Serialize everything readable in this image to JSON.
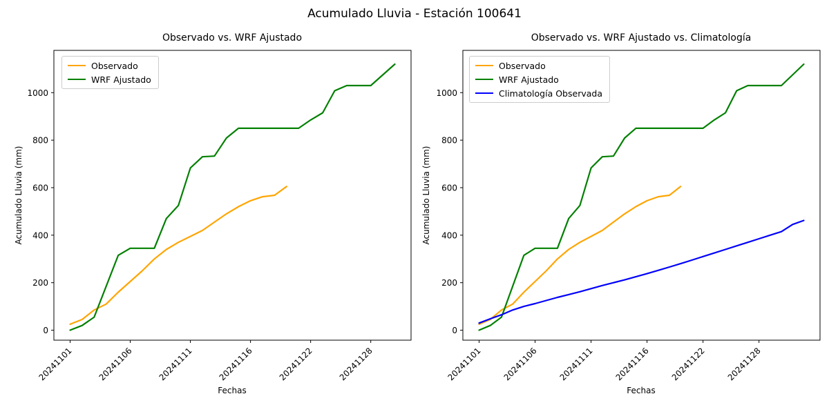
{
  "figure": {
    "title": "Acumulado Lluvia - Estación 100641"
  },
  "chart_data": [
    {
      "type": "line",
      "title": "Observado vs. WRF Ajustado",
      "xlabel": "Fechas",
      "ylabel": "Acumulado Lluvia (mm)",
      "yticks": [
        0,
        200,
        400,
        600,
        800,
        1000
      ],
      "ylim": [
        -42,
        1178
      ],
      "n_points": 28,
      "x_tick_indices": [
        0,
        5,
        10,
        15,
        20,
        25
      ],
      "x_tick_labels": [
        "20241101",
        "20241106",
        "20241111",
        "20241116",
        "20241122",
        "20241128"
      ],
      "legend_position": "upper-left",
      "grid": false,
      "series": [
        {
          "name": "Observado",
          "color": "#FFA500",
          "values": [
            25,
            45,
            85,
            110,
            160,
            205,
            250,
            300,
            340,
            370,
            395,
            420,
            455,
            490,
            520,
            545,
            562,
            568,
            605
          ]
        },
        {
          "name": "WRF Ajustado",
          "color": "#008000",
          "values": [
            0,
            20,
            55,
            185,
            315,
            345,
            345,
            345,
            470,
            525,
            683,
            730,
            733,
            809,
            850,
            850,
            850,
            850,
            850,
            850,
            885,
            915,
            1008,
            1030,
            1030,
            1030,
            1075,
            1120
          ]
        }
      ]
    },
    {
      "type": "line",
      "title": "Observado vs. WRF Ajustado vs. Climatología",
      "xlabel": "Fechas",
      "ylabel": "Acumulado Lluvia (mm)",
      "yticks": [
        0,
        200,
        400,
        600,
        800,
        1000
      ],
      "ylim": [
        -42,
        1178
      ],
      "n_points": 30,
      "x_tick_indices": [
        0,
        5,
        10,
        15,
        20,
        25
      ],
      "x_tick_labels": [
        "20241101",
        "20241106",
        "20241111",
        "20241116",
        "20241122",
        "20241128"
      ],
      "legend_position": "upper-left",
      "grid": false,
      "series": [
        {
          "name": "Observado",
          "color": "#FFA500",
          "values": [
            25,
            45,
            85,
            110,
            160,
            205,
            250,
            300,
            340,
            370,
            395,
            420,
            455,
            490,
            520,
            545,
            562,
            568,
            605
          ]
        },
        {
          "name": "WRF Ajustado",
          "color": "#008000",
          "values": [
            0,
            20,
            55,
            185,
            315,
            345,
            345,
            345,
            470,
            525,
            683,
            730,
            733,
            809,
            850,
            850,
            850,
            850,
            850,
            850,
            850,
            885,
            915,
            1008,
            1030,
            1030,
            1030,
            1030,
            1075,
            1120
          ]
        },
        {
          "name": "Climatología Observada",
          "color": "#0000FF",
          "values": [
            30,
            48,
            65,
            85,
            100,
            112,
            125,
            138,
            150,
            162,
            175,
            188,
            200,
            212,
            225,
            238,
            252,
            266,
            280,
            295,
            310,
            325,
            340,
            355,
            370,
            385,
            400,
            415,
            445,
            462
          ]
        }
      ]
    }
  ],
  "colors": {
    "axes": "#000000",
    "text": "#000000",
    "background": "#FFFFFF",
    "legend_border": "#CCCCCC"
  }
}
